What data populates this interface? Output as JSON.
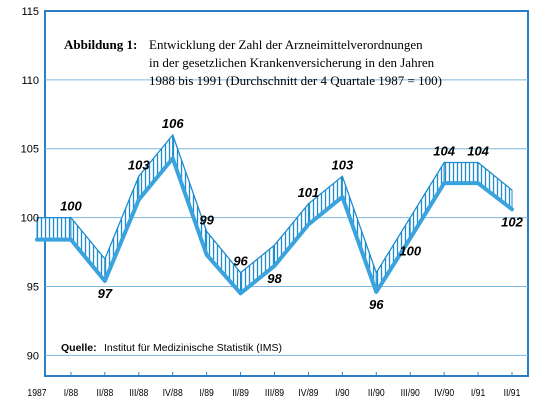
{
  "chart_data": {
    "type": "line",
    "title_label": "Abbildung 1:",
    "title_lines": [
      "Entwicklung der Zahl der Arzneimittelverordnungen",
      "in der gesetzlichen Krankenversicherung in den Jahren",
      "1988 bis 1991 (Durchschnitt der 4 Quartale 1987 = 100)"
    ],
    "source_label": "Quelle:",
    "source_text": "Institut für Medizinische Statistik (IMS)",
    "categories": [
      "1987",
      "I/88",
      "II/88",
      "III/88",
      "IV/88",
      "I/89",
      "II/89",
      "III/89",
      "IV/89",
      "I/90",
      "II/90",
      "III/90",
      "IV/90",
      "I/91",
      "II/91"
    ],
    "yticks": [
      90,
      95,
      100,
      105,
      110,
      115
    ],
    "ylim": [
      88.5,
      115
    ],
    "grid": "horizontal",
    "band_fill": "#1e8ccf",
    "line_color": "#3aa3de",
    "frame_color": "#2a7fc4",
    "series": [
      {
        "values": [
          100,
          100,
          97,
          103,
          106,
          99,
          96,
          98,
          101,
          103,
          96,
          100,
          104,
          104,
          102
        ]
      },
      {
        "values": [
          98.4,
          98.4,
          95.4,
          101.3,
          104.3,
          97.3,
          94.5,
          96.5,
          99.5,
          101.5,
          94.6,
          98.5,
          102.5,
          102.5,
          100.6
        ]
      }
    ],
    "data_labels": [
      {
        "x": "I/88",
        "text": "100",
        "position": "above"
      },
      {
        "x": "II/88",
        "text": "97",
        "position": "below"
      },
      {
        "x": "III/88",
        "text": "103",
        "position": "above"
      },
      {
        "x": "IV/88",
        "text": "106",
        "position": "above"
      },
      {
        "x": "I/89",
        "text": "99",
        "position": "above"
      },
      {
        "x": "II/89",
        "text": "96",
        "position": "above"
      },
      {
        "x": "III/89",
        "text": "98",
        "position": "below"
      },
      {
        "x": "IV/89",
        "text": "101",
        "position": "above"
      },
      {
        "x": "I/90",
        "text": "103",
        "position": "above"
      },
      {
        "x": "II/90",
        "text": "96",
        "position": "below"
      },
      {
        "x": "III/90",
        "text": "100",
        "position": "below"
      },
      {
        "x": "IV/90",
        "text": "104",
        "position": "above"
      },
      {
        "x": "I/91",
        "text": "104",
        "position": "above"
      },
      {
        "x": "II/91",
        "text": "102",
        "position": "below"
      }
    ]
  }
}
